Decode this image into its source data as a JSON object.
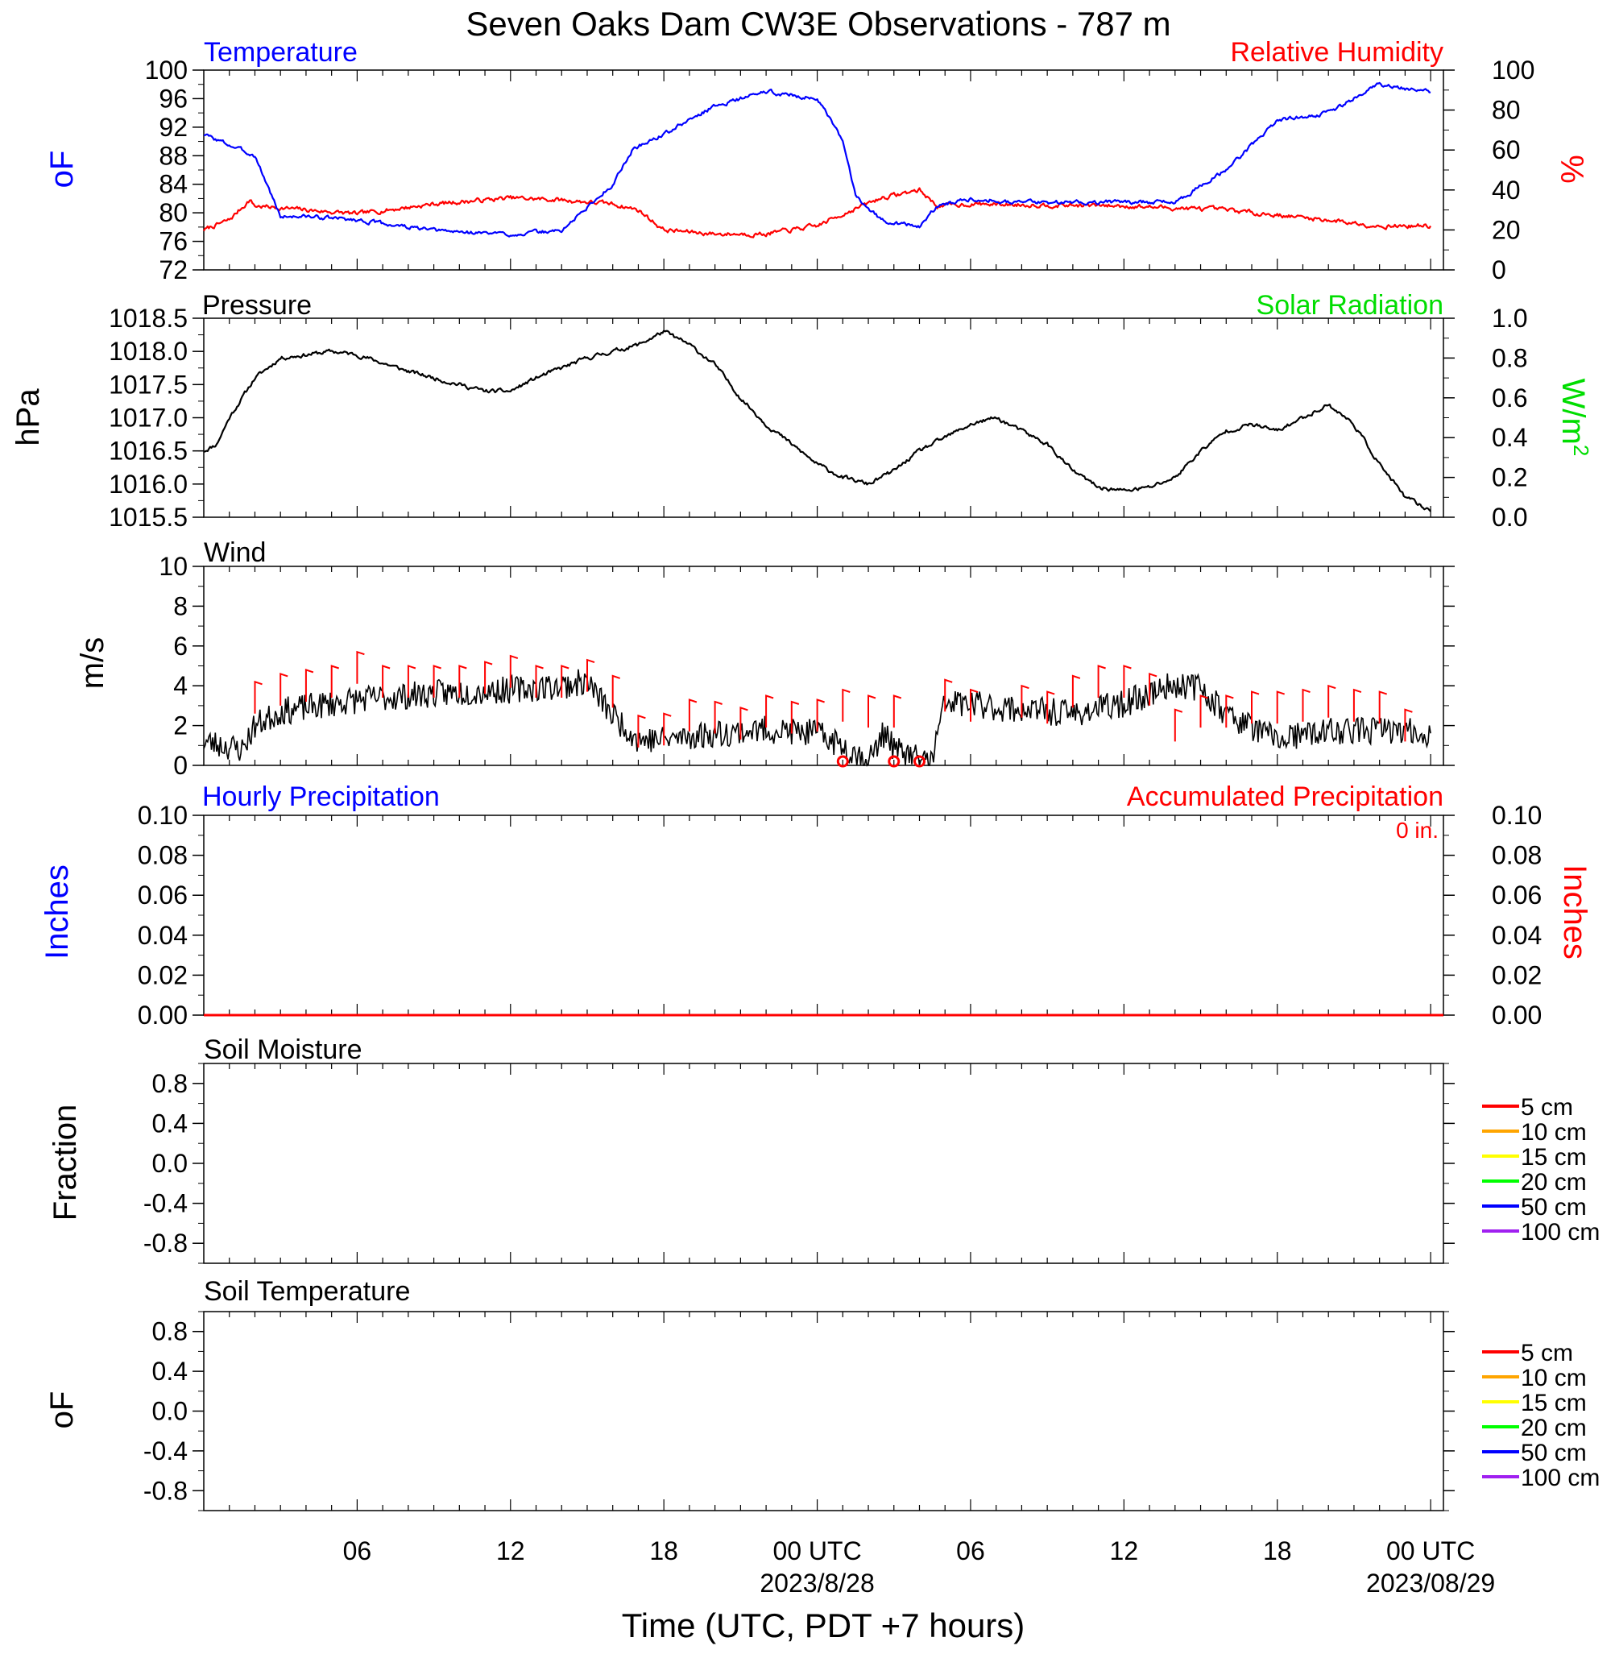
{
  "figure": {
    "title": "Seven Oaks Dam CW3E Observations - 787 m",
    "xlabel": "Time (UTC, PDT +7 hours)",
    "x_ticks": [
      {
        "label": "06",
        "date": ""
      },
      {
        "label": "12",
        "date": ""
      },
      {
        "label": "18",
        "date": ""
      },
      {
        "label": "00 UTC",
        "date": "2023/8/28"
      },
      {
        "label": "06",
        "date": ""
      },
      {
        "label": "12",
        "date": ""
      },
      {
        "label": "18",
        "date": ""
      },
      {
        "label": "00 UTC",
        "date": "2023/08/29"
      }
    ]
  },
  "colors": {
    "temperature": "#0000ff",
    "humidity": "#ff0000",
    "pressure": "#000000",
    "solar": "#00dd00",
    "wind": "#000000",
    "barb": "#ff0000",
    "accum": "#ff0000"
  },
  "chart_data": [
    {
      "type": "line",
      "panel": "temperature_humidity",
      "title_left": "Temperature",
      "title_right": "Relative Humidity",
      "ylabel_left": "oF",
      "ylabel_right": "%",
      "ylim_left": [
        72,
        100
      ],
      "yticks_left": [
        "72",
        "76",
        "80",
        "84",
        "88",
        "92",
        "96",
        "100"
      ],
      "ylim_right": [
        0,
        100
      ],
      "yticks_right": [
        "0",
        "20",
        "40",
        "60",
        "80",
        "100"
      ],
      "x_hours": [
        0,
        2,
        3,
        4,
        6,
        9,
        12,
        14,
        16,
        16.8,
        18,
        20,
        22,
        24,
        25,
        25.5,
        26.5,
        28,
        28.7,
        30,
        32,
        36,
        38,
        40,
        42,
        44,
        46,
        48
      ],
      "temperature_F": [
        91,
        88,
        79.5,
        79.5,
        79,
        77.5,
        77,
        77.5,
        84,
        89,
        91,
        95,
        97,
        96,
        90,
        82.5,
        79,
        78,
        81,
        82,
        81.5,
        81.5,
        81.5,
        86,
        93,
        94,
        98,
        97
      ],
      "rh_x_hours": [
        0,
        1,
        1.8,
        2,
        4,
        6,
        9,
        12,
        14,
        16,
        17,
        18,
        20,
        22,
        24,
        25,
        26.5,
        28,
        28.7,
        30,
        36,
        40,
        44,
        46,
        48
      ],
      "humidity_pct": [
        20,
        25,
        35,
        32,
        30,
        28,
        33,
        36,
        35,
        33,
        30,
        20,
        18,
        18,
        22,
        28,
        36,
        40,
        32,
        33,
        32,
        30,
        25,
        22,
        22
      ]
    },
    {
      "type": "line",
      "panel": "pressure_solar",
      "title_left": "Pressure",
      "title_right": "Solar Radiation",
      "ylabel_left": "hPa",
      "ylabel_right": "W/m2",
      "ylim_left": [
        1015.5,
        1018.5
      ],
      "yticks_left": [
        "1015.5",
        "1016.0",
        "1016.5",
        "1017.0",
        "1017.5",
        "1018.0",
        "1018.5"
      ],
      "ylim_right": [
        0,
        1
      ],
      "yticks_right": [
        "0.0",
        "0.2",
        "0.4",
        "0.6",
        "0.8",
        "1.0"
      ],
      "x_hours": [
        0,
        0.5,
        1,
        2,
        3,
        5,
        6,
        8,
        10,
        11,
        12,
        13,
        15,
        16,
        17,
        18,
        19,
        20,
        21,
        22,
        23,
        24,
        25,
        26,
        27,
        28,
        29,
        30,
        31,
        32,
        33,
        34,
        35,
        36,
        37,
        38,
        39,
        40,
        41,
        42,
        43,
        44,
        45,
        46,
        47,
        48
      ],
      "pressure_hPa": [
        1016.5,
        1016.6,
        1017.0,
        1017.6,
        1017.9,
        1018.0,
        1017.95,
        1017.7,
        1017.5,
        1017.4,
        1017.4,
        1017.6,
        1017.9,
        1018.0,
        1018.1,
        1018.3,
        1018.1,
        1017.8,
        1017.3,
        1016.9,
        1016.6,
        1016.3,
        1016.1,
        1016.0,
        1016.2,
        1016.5,
        1016.7,
        1016.9,
        1017.0,
        1016.8,
        1016.6,
        1016.2,
        1015.95,
        1015.9,
        1015.95,
        1016.1,
        1016.5,
        1016.8,
        1016.9,
        1016.8,
        1017.0,
        1017.2,
        1016.9,
        1016.3,
        1015.8,
        1015.6
      ]
    },
    {
      "type": "line",
      "panel": "wind",
      "title_left": "Wind",
      "ylabel_left": "m/s",
      "ylim_left": [
        0,
        10
      ],
      "yticks_left": [
        "0",
        "2",
        "4",
        "6",
        "8",
        "10"
      ],
      "x_hours": [
        0,
        1.5,
        2,
        3,
        6,
        9,
        12,
        14,
        15,
        16,
        17,
        18,
        20,
        22,
        24,
        25,
        26,
        26.7,
        27,
        28,
        28.5,
        29,
        32,
        34,
        36,
        38,
        39,
        40,
        42,
        44,
        46,
        48
      ],
      "wind_ms": [
        1.2,
        0.8,
        2.0,
        2.7,
        3.3,
        3.6,
        3.8,
        4.0,
        4.2,
        2.5,
        1.3,
        1.3,
        1.6,
        1.8,
        1.6,
        1.0,
        0.2,
        1.8,
        0.8,
        0.3,
        0.3,
        3.2,
        2.8,
        2.6,
        3.1,
        4.1,
        3.9,
        2.6,
        1.3,
        1.7,
        1.8,
        1.6
      ],
      "gust_barbs_hours": [
        2,
        3,
        4,
        5,
        6,
        7,
        8,
        9,
        10,
        11,
        12,
        13,
        14,
        15,
        16,
        17,
        18,
        19,
        20,
        21,
        22,
        23,
        24,
        25,
        26,
        27,
        29,
        30,
        32,
        33,
        34,
        35,
        36,
        37,
        38,
        39,
        40,
        41,
        42,
        43,
        44,
        45,
        46,
        47
      ],
      "gust_barbs_ms": [
        4.2,
        4.6,
        4.8,
        5.0,
        5.7,
        5.0,
        5.0,
        5.0,
        5.0,
        5.2,
        5.5,
        5.0,
        5.0,
        5.3,
        4.5,
        2.5,
        2.6,
        3.3,
        3.2,
        2.9,
        3.5,
        3.2,
        3.3,
        3.8,
        3.5,
        3.5,
        4.3,
        3.8,
        4.0,
        3.7,
        4.5,
        5.0,
        5.0,
        4.6,
        2.8,
        3.5,
        3.5,
        3.7,
        3.7,
        3.8,
        4.0,
        3.8,
        3.7,
        2.8
      ],
      "calm_marker_hours": [
        25,
        27,
        28
      ]
    },
    {
      "type": "bar",
      "panel": "precipitation",
      "title_left": "Hourly Precipitation",
      "title_right": "Accumulated Precipitation",
      "accum_label": "0 in.",
      "ylabel_left": "Inches",
      "ylabel_right": "Inches",
      "ylim_left": [
        0,
        0.1
      ],
      "yticks_left": [
        "0.00",
        "0.02",
        "0.04",
        "0.06",
        "0.08",
        "0.10"
      ],
      "ylim_right": [
        0,
        0.1
      ],
      "yticks_right": [
        "0.00",
        "0.02",
        "0.04",
        "0.06",
        "0.08",
        "0.10"
      ],
      "hourly_in": [],
      "accumulated_in": [
        0,
        0
      ]
    },
    {
      "type": "line",
      "panel": "soil_moisture",
      "title_left": "Soil Moisture",
      "ylabel_left": "Fraction",
      "ylim_left": [
        -1,
        1
      ],
      "yticks_left": [
        "-0.8",
        "-0.4",
        "0.0",
        "0.4",
        "0.8"
      ],
      "legend": [
        {
          "name": "5 cm",
          "color": "#ff0000"
        },
        {
          "name": "10 cm",
          "color": "#ffa500"
        },
        {
          "name": "15 cm",
          "color": "#ffff00"
        },
        {
          "name": "20 cm",
          "color": "#00ff00"
        },
        {
          "name": "50 cm",
          "color": "#0000ff"
        },
        {
          "name": "100 cm",
          "color": "#a020f0"
        }
      ]
    },
    {
      "type": "line",
      "panel": "soil_temperature",
      "title_left": "Soil Temperature",
      "ylabel_left": "oF",
      "ylim_left": [
        -1,
        1
      ],
      "yticks_left": [
        "-0.8",
        "-0.4",
        "0.0",
        "0.4",
        "0.8"
      ],
      "legend": [
        {
          "name": "5 cm",
          "color": "#ff0000"
        },
        {
          "name": "10 cm",
          "color": "#ffa500"
        },
        {
          "name": "15 cm",
          "color": "#ffff00"
        },
        {
          "name": "20 cm",
          "color": "#00ff00"
        },
        {
          "name": "50 cm",
          "color": "#0000ff"
        },
        {
          "name": "100 cm",
          "color": "#a020f0"
        }
      ]
    }
  ]
}
